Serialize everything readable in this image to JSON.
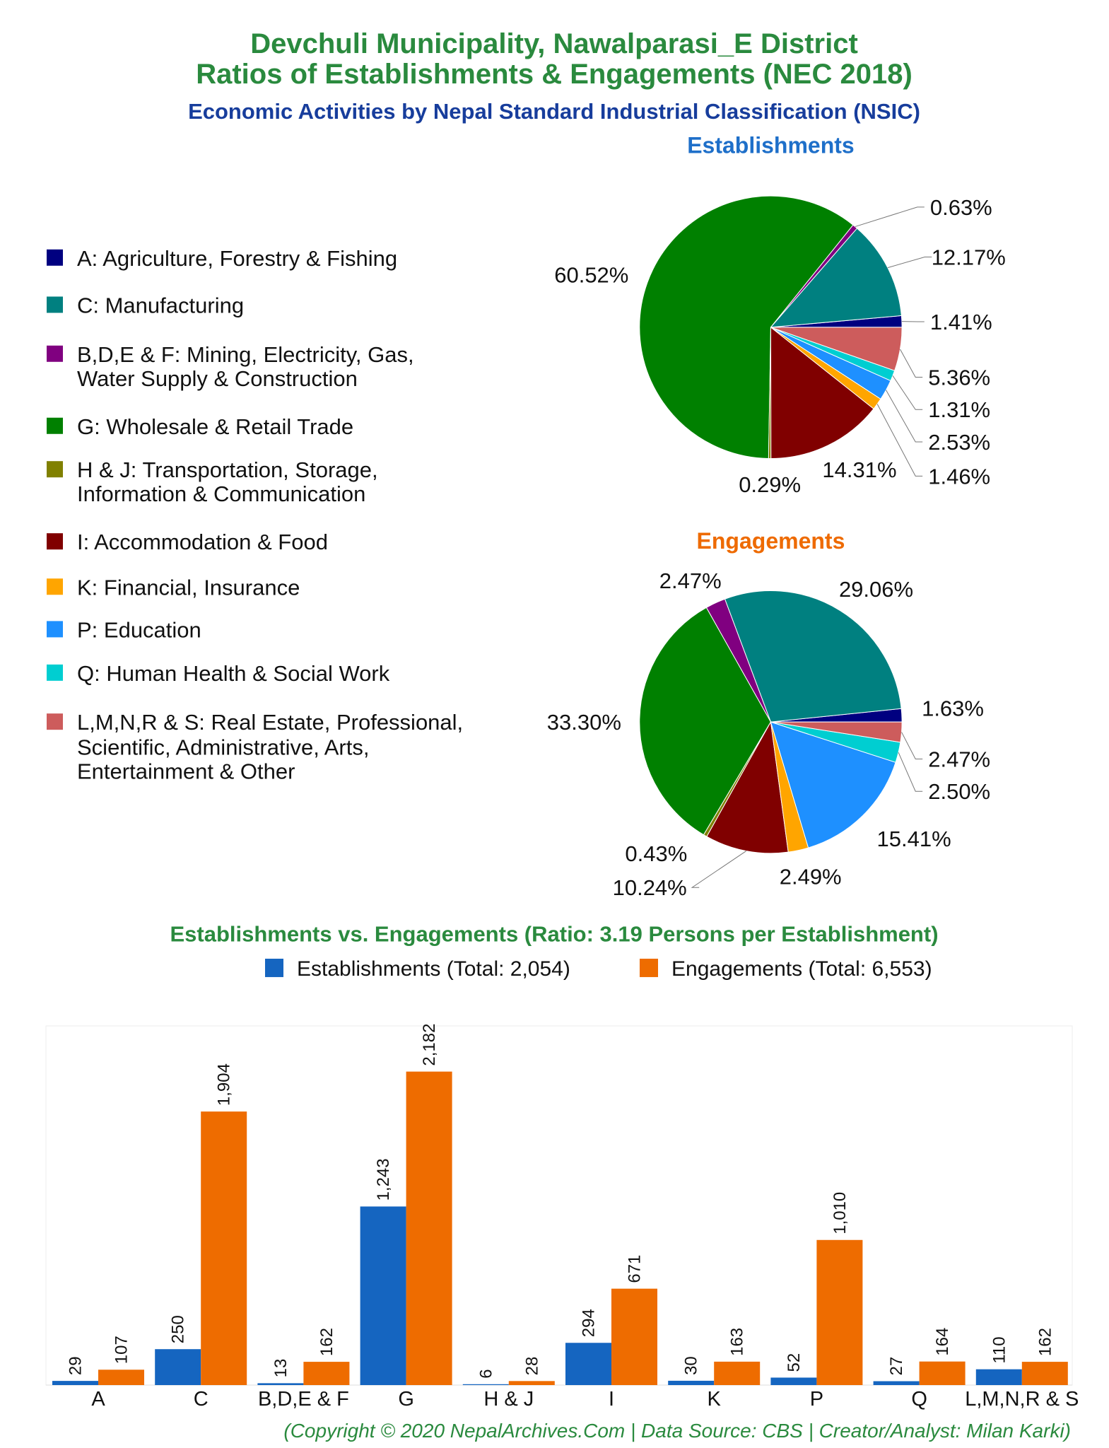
{
  "title_line1": "Devchuli Municipality, Nawalparasi_E District",
  "title_line2": "Ratios of Establishments & Engagements (NEC 2018)",
  "subtitle": "Economic Activities by Nepal Standard Industrial Classification (NSIC)",
  "legend": [
    {
      "lines": [
        "A: Agriculture, Forestry & Fishing"
      ],
      "color": "#000080"
    },
    {
      "lines": [
        "C: Manufacturing"
      ],
      "color": "#008080"
    },
    {
      "lines": [
        "B,D,E & F: Mining, Electricity, Gas,",
        "Water Supply & Construction"
      ],
      "color": "#800080"
    },
    {
      "lines": [
        "G: Wholesale & Retail Trade"
      ],
      "color": "#008000"
    },
    {
      "lines": [
        "H & J: Transportation, Storage,",
        "Information & Communication"
      ],
      "color": "#808000"
    },
    {
      "lines": [
        "I: Accommodation & Food"
      ],
      "color": "#800000"
    },
    {
      "lines": [
        "K: Financial, Insurance"
      ],
      "color": "#FFA500"
    },
    {
      "lines": [
        "P: Education"
      ],
      "color": "#1E90FF"
    },
    {
      "lines": [
        "Q: Human Health & Social Work"
      ],
      "color": "#00CED1"
    },
    {
      "lines": [
        "L,M,N,R & S: Real Estate, Professional,",
        "Scientific, Administrative, Arts,",
        "Entertainment & Other"
      ],
      "color": "#CD5C5C"
    }
  ],
  "chart_data": [
    {
      "type": "pie",
      "title": "Establishments",
      "title_color": "#1e6fc9",
      "categories": [
        "A",
        "C",
        "B,D,E & F",
        "G",
        "H & J",
        "I",
        "K",
        "P",
        "Q",
        "L,M,N,R & S"
      ],
      "values": [
        1.41,
        12.17,
        0.63,
        60.52,
        0.29,
        14.31,
        1.46,
        2.53,
        1.31,
        5.36
      ],
      "labels": [
        "1.41%",
        "12.17%",
        "0.63%",
        "60.52%",
        "0.29%",
        "14.31%",
        "1.46%",
        "2.53%",
        "1.31%",
        "5.36%"
      ]
    },
    {
      "type": "pie",
      "title": "Engagements",
      "title_color": "#ee6a00",
      "categories": [
        "A",
        "C",
        "B,D,E & F",
        "G",
        "H & J",
        "I",
        "K",
        "P",
        "Q",
        "L,M,N,R & S"
      ],
      "values": [
        1.63,
        29.06,
        2.47,
        33.3,
        0.43,
        10.24,
        2.49,
        15.41,
        2.5,
        2.47
      ],
      "labels": [
        "1.63%",
        "29.06%",
        "2.47%",
        "33.30%",
        "0.43%",
        "10.24%",
        "2.49%",
        "15.41%",
        "2.50%",
        "2.47%"
      ]
    },
    {
      "type": "bar",
      "title": "Establishments vs. Engagements (Ratio: 3.19 Persons per Establishment)",
      "categories": [
        "A",
        "C",
        "B,D,E & F",
        "G",
        "H & J",
        "I",
        "K",
        "P",
        "Q",
        "L,M,N,R & S"
      ],
      "series": [
        {
          "name": "Establishments (Total: 2,054)",
          "color": "#1565C0",
          "values": [
            29,
            250,
            13,
            1243,
            6,
            294,
            30,
            52,
            27,
            110
          ],
          "labels": [
            "29",
            "250",
            "13",
            "1,243",
            "6",
            "294",
            "30",
            "52",
            "27",
            "110"
          ]
        },
        {
          "name": "Engagements (Total: 6,553)",
          "color": "#EE6C00",
          "values": [
            107,
            1904,
            162,
            2182,
            28,
            671,
            163,
            1010,
            164,
            162
          ],
          "labels": [
            "107",
            "1,904",
            "162",
            "2,182",
            "28",
            "671",
            "163",
            "1,010",
            "164",
            "162"
          ]
        }
      ],
      "ylim": [
        0,
        2500
      ],
      "grid": false,
      "legend_position": "top"
    }
  ],
  "copyright": "(Copyright © 2020 NepalArchives.Com | Data Source: CBS | Creator/Analyst: Milan Karki)"
}
